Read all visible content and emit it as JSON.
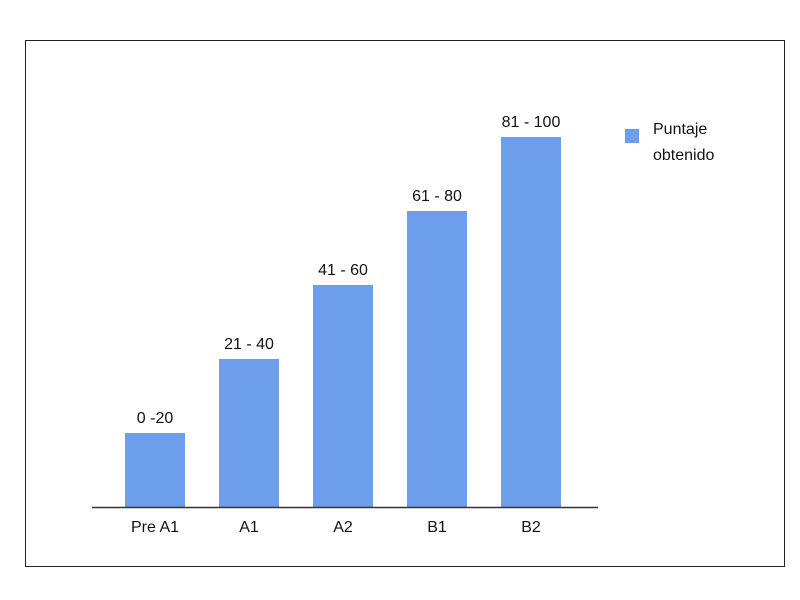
{
  "chart_data": {
    "type": "bar",
    "categories": [
      "Pre A1",
      "A1",
      "A2",
      "B1",
      "B2"
    ],
    "values": [
      20,
      40,
      60,
      80,
      100
    ],
    "bar_labels": [
      "0 -20",
      "21 - 40",
      "41 - 60",
      "61 - 80",
      "81 - 100"
    ],
    "series": [
      {
        "name": "Puntaje obtenido",
        "values": [
          20,
          40,
          60,
          80,
          100
        ]
      }
    ],
    "legend": {
      "lines": [
        "Puntaje",
        "obtenido"
      ],
      "position": "right"
    },
    "ylim": [
      0,
      100
    ],
    "grid": false,
    "colors": {
      "bar": "#6d9eeb",
      "axis": "#333333"
    }
  }
}
